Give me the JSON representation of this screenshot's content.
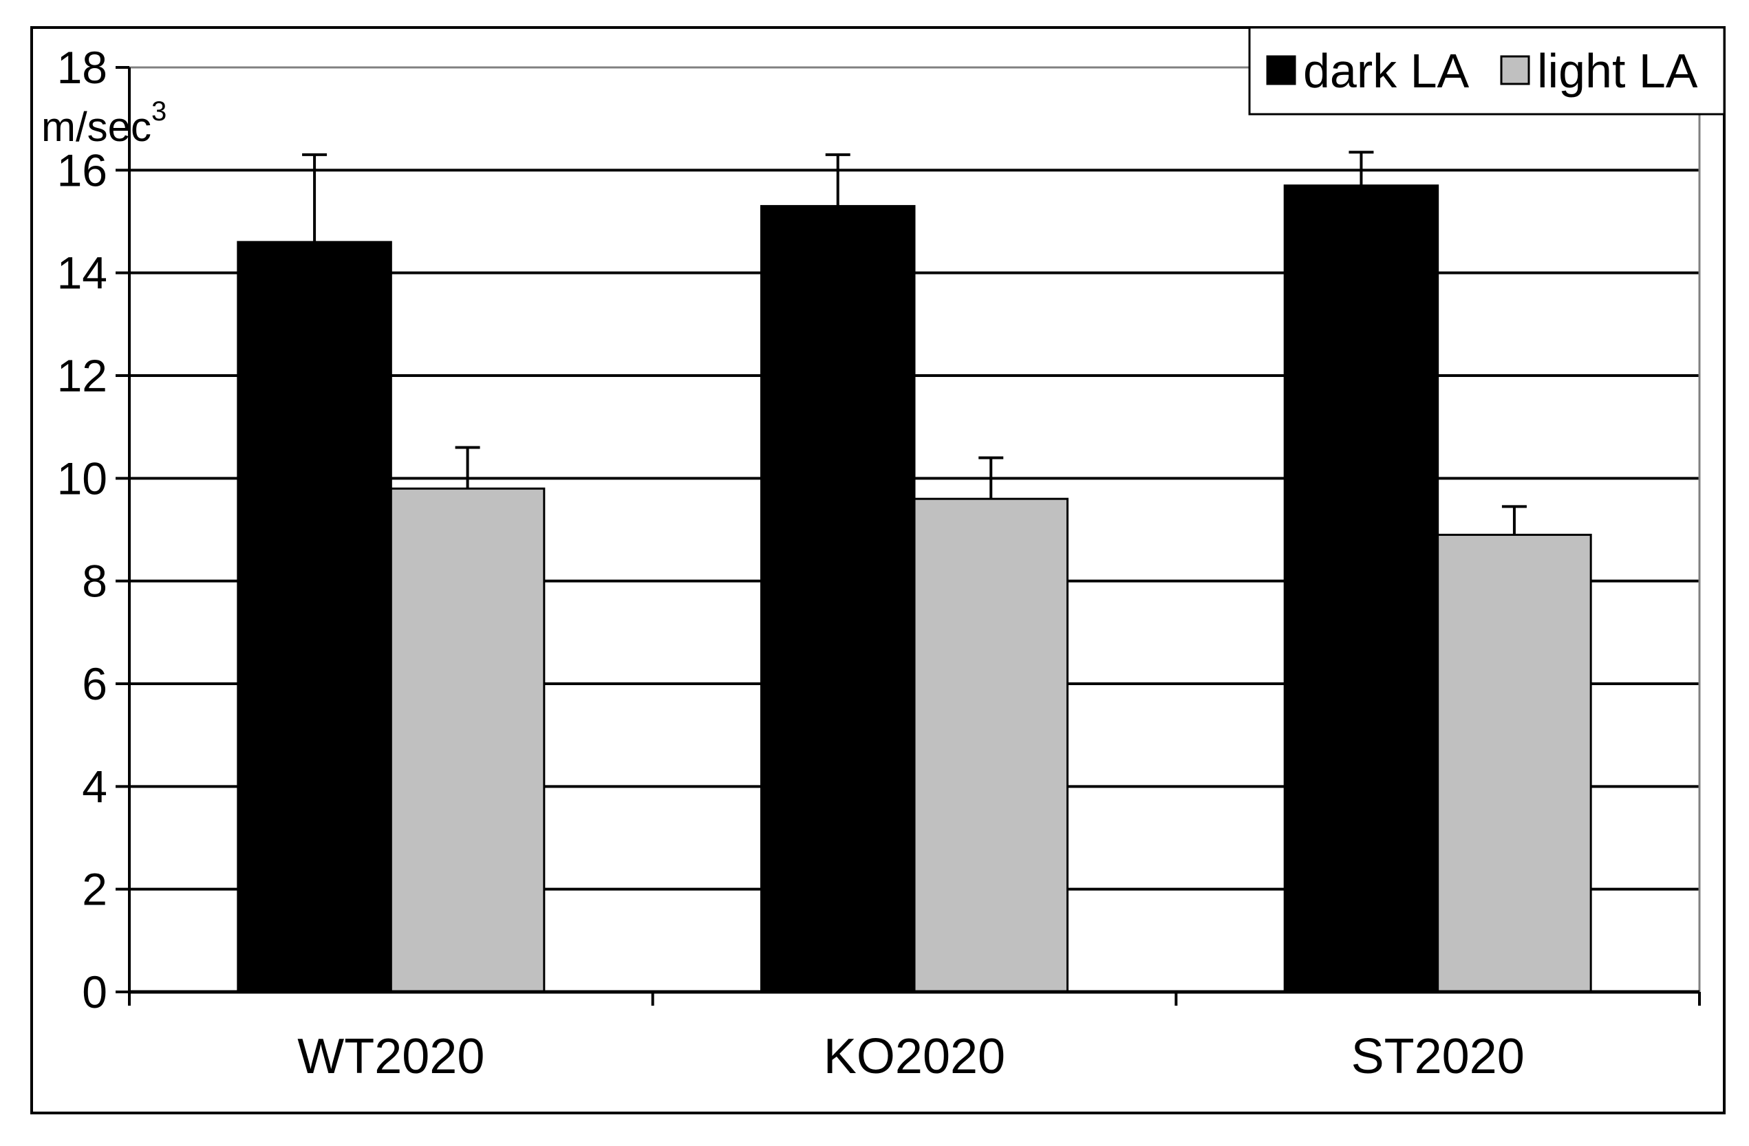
{
  "chart_data": {
    "type": "bar",
    "title": "",
    "xlabel": "",
    "ylabel": "",
    "y_unit": {
      "base": "m/sec",
      "superscript": "3"
    },
    "categories": [
      "WT2020",
      "KO2020",
      "ST2020"
    ],
    "series": [
      {
        "name": "dark LA",
        "color": "#000000",
        "values": [
          14.6,
          15.3,
          15.7
        ],
        "errors": [
          1.7,
          1.0,
          0.65
        ]
      },
      {
        "name": "light LA",
        "color": "#c0c0c0",
        "values": [
          9.8,
          9.6,
          8.9
        ],
        "errors": [
          0.8,
          0.8,
          0.55
        ]
      }
    ],
    "ylim": [
      0,
      18
    ],
    "yticks": [
      0,
      2,
      4,
      6,
      8,
      10,
      12,
      14,
      16,
      18
    ],
    "grid": true,
    "legend_position": "top-right"
  }
}
